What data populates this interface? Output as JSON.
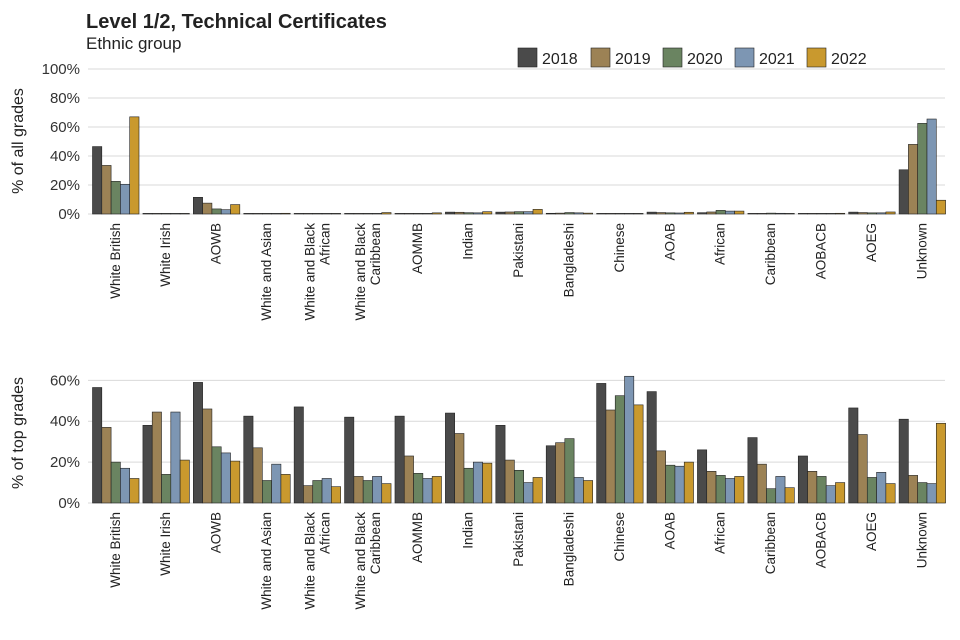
{
  "title": "Level 1/2, Technical Certificates",
  "subtitle": "Ethnic group",
  "colors": {
    "2018": "#4a4a4a",
    "2019": "#9c8255",
    "2020": "#6a8461",
    "2021": "#7d96b3",
    "2022": "#c9992e"
  },
  "legend": [
    "2018",
    "2019",
    "2020",
    "2021",
    "2022"
  ],
  "chart_data": [
    {
      "type": "bar",
      "ylabel": "% of all grades",
      "ylim": [
        0,
        100
      ],
      "yticks": [
        0,
        20,
        40,
        60,
        80,
        100
      ],
      "ytick_labels": [
        "0%",
        "20%",
        "40%",
        "60%",
        "80%",
        "100%"
      ],
      "categories": [
        "White British",
        "White Irish",
        "AOWB",
        "White and Asian",
        "White and Black African",
        "White and Black Caribbean",
        "AOMMB",
        "Indian",
        "Pakistani",
        "Bangladeshi",
        "Chinese",
        "AOAB",
        "African",
        "Caribbean",
        "AOBACB",
        "AOEG",
        "Unknown"
      ],
      "category_lines": [
        [
          "White British"
        ],
        [
          "White Irish"
        ],
        [
          "AOWB"
        ],
        [
          "White and Asian"
        ],
        [
          "White and Black",
          "African"
        ],
        [
          "White and Black",
          "Caribbean"
        ],
        [
          "AOMMB"
        ],
        [
          "Indian"
        ],
        [
          "Pakistani"
        ],
        [
          "Bangladeshi"
        ],
        [
          "Chinese"
        ],
        [
          "AOAB"
        ],
        [
          "African"
        ],
        [
          "Caribbean"
        ],
        [
          "AOBACB"
        ],
        [
          "AOEG"
        ],
        [
          "Unknown"
        ]
      ],
      "series": [
        {
          "name": "2018",
          "values": [
            46.5,
            0.1,
            11.5,
            0.2,
            0.2,
            0.4,
            0.4,
            1.3,
            1.3,
            0.5,
            0.4,
            1.3,
            0.9,
            0.3,
            0.2,
            1.3,
            30.5
          ]
        },
        {
          "name": "2019",
          "values": [
            33.5,
            0.1,
            7.5,
            0.2,
            0.2,
            0.4,
            0.4,
            1.2,
            1.4,
            0.6,
            0.3,
            1.0,
            1.4,
            0.4,
            0.2,
            1.0,
            48.0
          ]
        },
        {
          "name": "2020",
          "values": [
            22.5,
            0.1,
            3.5,
            0.2,
            0.2,
            0.4,
            0.4,
            0.9,
            1.6,
            1.0,
            0.2,
            0.8,
            2.5,
            0.6,
            0.4,
            0.8,
            62.5
          ]
        },
        {
          "name": "2021",
          "values": [
            20.5,
            0.1,
            3.0,
            0.2,
            0.2,
            0.4,
            0.4,
            0.8,
            1.6,
            0.8,
            0.2,
            0.7,
            2.0,
            0.5,
            0.3,
            0.8,
            65.5
          ]
        },
        {
          "name": "2022",
          "values": [
            67.0,
            0.1,
            6.5,
            0.5,
            0.4,
            1.0,
            0.8,
            1.6,
            3.2,
            0.6,
            0.2,
            1.2,
            2.0,
            0.4,
            0.5,
            1.4,
            9.5
          ]
        }
      ]
    },
    {
      "type": "bar",
      "ylabel": "% of top grades",
      "ylim": [
        0,
        68
      ],
      "yticks": [
        0,
        20,
        40,
        60
      ],
      "ytick_labels": [
        "0%",
        "20%",
        "40%",
        "60%"
      ],
      "categories": [
        "White British",
        "White Irish",
        "AOWB",
        "White and Asian",
        "White and Black African",
        "White and Black Caribbean",
        "AOMMB",
        "Indian",
        "Pakistani",
        "Bangladeshi",
        "Chinese",
        "AOAB",
        "African",
        "Caribbean",
        "AOBACB",
        "AOEG",
        "Unknown"
      ],
      "category_lines": [
        [
          "White British"
        ],
        [
          "White Irish"
        ],
        [
          "AOWB"
        ],
        [
          "White and Asian"
        ],
        [
          "White and Black",
          "African"
        ],
        [
          "White and Black",
          "Caribbean"
        ],
        [
          "AOMMB"
        ],
        [
          "Indian"
        ],
        [
          "Pakistani"
        ],
        [
          "Bangladeshi"
        ],
        [
          "Chinese"
        ],
        [
          "AOAB"
        ],
        [
          "African"
        ],
        [
          "Caribbean"
        ],
        [
          "AOBACB"
        ],
        [
          "AOEG"
        ],
        [
          "Unknown"
        ]
      ],
      "series": [
        {
          "name": "2018",
          "values": [
            56.5,
            38.0,
            59.0,
            42.5,
            47.0,
            42.0,
            42.5,
            44.0,
            38.0,
            28.0,
            58.5,
            54.5,
            26.0,
            32.0,
            23.0,
            46.5,
            41.0
          ]
        },
        {
          "name": "2019",
          "values": [
            37.0,
            44.5,
            46.0,
            27.0,
            8.5,
            13.0,
            23.0,
            34.0,
            21.0,
            29.5,
            45.5,
            25.5,
            15.5,
            19.0,
            15.5,
            33.5,
            13.5
          ]
        },
        {
          "name": "2020",
          "values": [
            20.0,
            14.0,
            27.5,
            11.0,
            11.0,
            11.0,
            14.5,
            17.0,
            16.0,
            31.5,
            52.5,
            18.5,
            13.5,
            7.0,
            13.0,
            12.5,
            10.0
          ]
        },
        {
          "name": "2021",
          "values": [
            17.0,
            44.5,
            24.5,
            19.0,
            12.0,
            13.0,
            12.0,
            20.0,
            10.0,
            12.5,
            62.0,
            18.0,
            12.0,
            13.0,
            8.5,
            15.0,
            9.5
          ]
        },
        {
          "name": "2022",
          "values": [
            12.0,
            21.0,
            20.5,
            14.0,
            8.0,
            9.5,
            13.0,
            19.5,
            12.5,
            11.0,
            48.0,
            20.0,
            13.0,
            7.5,
            10.0,
            9.5,
            39.0
          ]
        }
      ]
    }
  ]
}
